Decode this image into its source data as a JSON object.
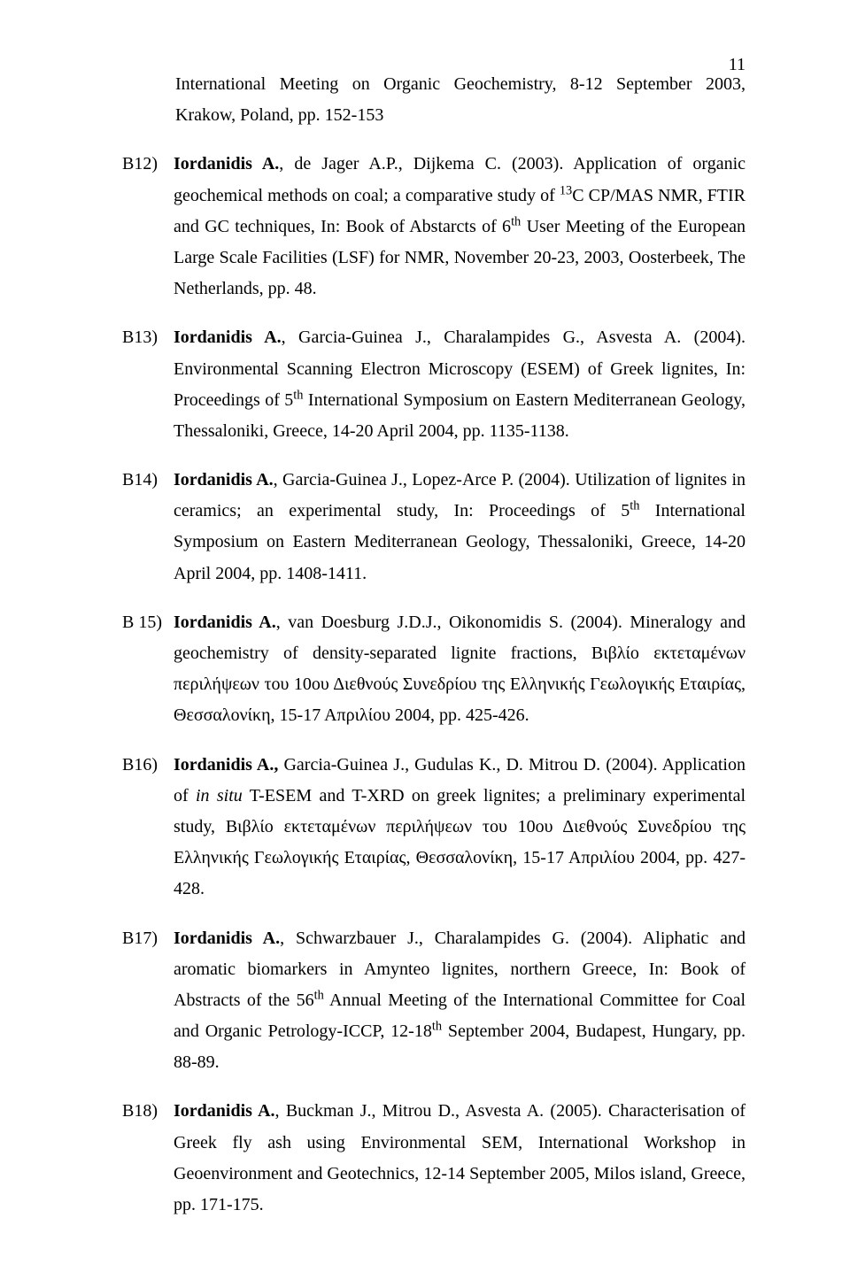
{
  "page_number": "11",
  "cont_prefix": "International Meeting on Organic Geochemistry, 8-12 September 2003, Krakow, Poland, pp. 152-153",
  "entries": [
    {
      "key": "B12)",
      "author_bold": "Iordanidis A.",
      "rest1": ", de Jager A.P., Dijkema C. (2003). Application of organic geochemical methods on coal; a comparative study of ",
      "sup1": "13",
      "rest2": "C CP/MAS NMR, FTIR and GC techniques, In: Book of Abstarcts of 6",
      "sup2": "th",
      "rest3": " User Meeting of the European Large Scale Facilities (LSF) for NMR, November 20-23, 2003, Oosterbeek, The Netherlands, pp. 48."
    },
    {
      "key": "B13)",
      "author_bold": "Iordanidis A.",
      "rest1": ", Garcia-Guinea J., Charalampides G., Asvesta A. (2004). Environmental Scanning Electron Microscopy (ESEM) of Greek lignites, In: Proceedings of 5",
      "sup1": "th",
      "rest2": " International Symposium on Eastern Mediterranean Geology, Thessaloniki, Greece, 14-20 April 2004, pp. 1135-1138."
    },
    {
      "key": "B14)",
      "author_bold": "Iordanidis A.",
      "rest1": ", Garcia-Guinea J., Lopez-Arce P. (2004). Utilization of lignites in ceramics; an experimental study, In: Proceedings of 5",
      "sup1": "th",
      "rest2": " International Symposium on Eastern Mediterranean Geology, Thessaloniki, Greece, 14-20 April 2004, pp. 1408-1411."
    },
    {
      "key": "B 15)",
      "author_bold": "Iordanidis A.",
      "rest1": ", van Doesburg J.D.J., Oikonomidis S. (2004). Mineralogy and geochemistry of density-separated lignite fractions, Βιβλίο εκτεταμένων περιλήψεων του 10ου Διεθνούς Συνεδρίου της Ελληνικής Γεωλογικής Εταιρίας, Θεσσαλονίκη, 15-17 Απριλίου 2004, pp. 425-426."
    },
    {
      "key": "B16)",
      "author_bold": "Iordanidis A.,",
      "rest1": " Garcia-Guinea J., Gudulas K., D. Mitrou D. (2004). Application of ",
      "italic1": "in situ",
      "rest2": " T-ESEM and T-XRD on greek lignites; a preliminary experimental study, Βιβλίο εκτεταμένων περιλήψεων του 10ου Διεθνούς Συνεδρίου της Ελληνικής Γεωλογικής Εταιρίας, Θεσσαλονίκη, 15-17 Απριλίου 2004, pp. 427-428."
    },
    {
      "key": "B17)",
      "author_bold": "Iordanidis A.",
      "rest1": ", Schwarzbauer J., Charalampides G. (2004). Aliphatic and aromatic biomarkers in Amynteo lignites, northern Greece, In: Book of Abstracts of the 56",
      "sup1": "th",
      "rest2": " Annual Meeting of the International Committee for Coal and Organic Petrology-ICCP, 12-18",
      "sup2": "th",
      "rest3": " September 2004, Budapest, Hungary, pp. 88-89."
    },
    {
      "key": "B18)",
      "author_bold": "Iordanidis A.",
      "rest1": ", Buckman J., Mitrou D., Asvesta A. (2005). Characterisation of Greek fly ash using Environmental SEM, International Workshop in Geoenvironment and Geotechnics, 12-14 September 2005, Milos island, Greece, pp. 171-175."
    }
  ]
}
